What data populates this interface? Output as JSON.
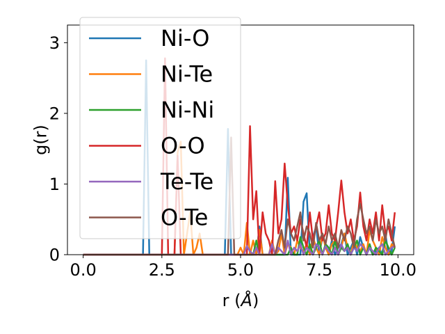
{
  "chart_data": {
    "type": "line",
    "title": "",
    "xlabel": "r (",
    "xlabel_symbol": "Å",
    "xlabel_close": ")",
    "ylabel": "g(r)",
    "xlim": [
      -0.5,
      10.5
    ],
    "ylim": [
      0,
      3.25
    ],
    "xticks": [
      0.0,
      2.5,
      5.0,
      7.5,
      10.0
    ],
    "xtick_labels": [
      "0.0",
      "2.5",
      "5.0",
      "7.5",
      "10.0"
    ],
    "yticks": [
      0,
      1,
      2,
      3
    ],
    "ytick_labels": [
      "0",
      "1",
      "2",
      "3"
    ],
    "grid": false,
    "legend_position": "top-left",
    "x": [
      0.0,
      0.1,
      0.2,
      0.3,
      0.4,
      0.5,
      0.6,
      0.7,
      0.8,
      0.9,
      1.0,
      1.1,
      1.2,
      1.3,
      1.4,
      1.5,
      1.6,
      1.7,
      1.8,
      1.9,
      2.0,
      2.1,
      2.2,
      2.3,
      2.4,
      2.5,
      2.6,
      2.7,
      2.8,
      2.9,
      3.0,
      3.1,
      3.2,
      3.3,
      3.4,
      3.5,
      3.6,
      3.7,
      3.8,
      3.9,
      4.0,
      4.1,
      4.2,
      4.3,
      4.4,
      4.5,
      4.6,
      4.7,
      4.8,
      4.9,
      5.0,
      5.1,
      5.2,
      5.3,
      5.4,
      5.5,
      5.6,
      5.7,
      5.8,
      5.9,
      6.0,
      6.1,
      6.2,
      6.3,
      6.4,
      6.5,
      6.6,
      6.7,
      6.8,
      6.9,
      7.0,
      7.1,
      7.2,
      7.3,
      7.4,
      7.5,
      7.6,
      7.7,
      7.8,
      7.9,
      8.0,
      8.1,
      8.2,
      8.3,
      8.4,
      8.5,
      8.6,
      8.7,
      8.8,
      8.9,
      9.0,
      9.1,
      9.2,
      9.3,
      9.4,
      9.5,
      9.6,
      9.7,
      9.8,
      9.9
    ],
    "series": [
      {
        "name": "Ni-O",
        "color": "#1f77b4",
        "values": [
          0,
          0,
          0,
          0,
          0,
          0,
          0,
          0,
          0,
          0,
          0,
          0,
          0,
          0,
          0,
          0,
          0,
          0,
          0,
          0,
          2.75,
          0,
          0,
          0,
          0,
          0,
          0,
          0,
          0,
          0,
          0,
          0,
          0,
          0,
          0,
          0,
          0,
          0,
          0,
          0,
          0,
          0,
          0,
          0,
          0,
          0,
          1.78,
          0,
          0,
          0,
          0,
          0,
          0,
          0,
          0,
          0,
          0.4,
          0,
          0,
          0,
          0,
          0,
          0,
          0,
          0,
          1.09,
          0,
          0,
          0,
          0,
          0.75,
          0.87,
          0,
          0.25,
          0.4,
          0,
          0.25,
          0.15,
          0,
          0.2,
          0,
          0.1,
          0.15,
          0.3,
          0,
          0.1,
          0.2,
          0,
          0.25,
          0.1,
          0,
          0.1,
          0,
          0.05,
          0.1,
          0,
          0.3,
          0,
          0.05,
          0.4
        ]
      },
      {
        "name": "Ni-Te",
        "color": "#ff7f0e",
        "values": [
          0,
          0,
          0,
          0,
          0,
          0,
          0,
          0,
          0,
          0,
          0,
          0,
          0,
          0,
          0,
          0,
          0,
          0,
          0,
          0,
          0,
          0,
          0,
          0,
          0,
          0,
          0,
          0,
          0,
          0,
          1.45,
          1.6,
          0,
          0.3,
          0.6,
          0,
          0.1,
          0.3,
          0,
          0,
          0,
          0,
          0,
          0,
          0,
          0,
          0,
          0,
          0,
          0,
          0.1,
          0,
          0.45,
          0,
          0.2,
          0,
          0.35,
          0,
          0,
          0,
          0.2,
          0,
          0.05,
          0.3,
          0,
          0.15,
          0.1,
          0,
          0.2,
          0.1,
          0.05,
          0.15,
          0,
          0.25,
          0.1,
          0,
          0.3,
          0.1,
          0,
          0.15,
          0.2,
          0,
          0.1,
          0.3,
          0.1,
          0,
          0.2,
          0.1,
          0.05,
          0.15,
          0,
          0.35,
          0.2,
          0.1,
          0,
          0.25,
          0.1,
          0,
          0.15,
          0.1
        ]
      },
      {
        "name": "Ni-Ni",
        "color": "#2ca02c",
        "values": [
          0,
          0,
          0,
          0,
          0,
          0,
          0,
          0,
          0,
          0,
          0,
          0,
          0,
          0,
          0,
          0,
          0,
          0,
          0,
          0,
          0,
          0,
          0,
          0,
          0,
          0,
          0,
          0,
          0,
          0,
          0,
          0,
          0,
          0,
          0,
          0,
          0,
          0,
          0,
          0,
          0,
          0,
          0,
          0,
          0,
          0,
          0,
          0,
          0,
          0,
          0,
          0,
          0,
          0,
          0,
          0.2,
          0,
          0,
          0,
          0,
          0,
          0,
          0,
          0,
          0,
          0,
          0.1,
          0,
          0,
          0.25,
          0.1,
          0,
          0.15,
          0,
          0.1,
          0.2,
          0,
          0.15,
          0.1,
          0,
          0.2,
          0,
          0.1,
          0.05,
          0.15,
          0,
          0.1,
          0.2,
          0,
          0.1,
          0,
          0.15,
          0,
          0.1,
          0.05,
          0,
          0.2,
          0.1,
          0,
          0.1
        ]
      },
      {
        "name": "O-O",
        "color": "#d62728",
        "values": [
          0,
          0,
          0,
          0,
          0,
          0,
          0,
          0,
          0,
          0,
          0,
          0,
          0,
          0,
          0,
          0,
          0,
          0,
          0,
          0,
          0,
          0,
          0,
          0,
          0,
          0,
          2.78,
          0,
          0,
          0,
          1.4,
          0,
          0,
          0,
          0,
          0,
          0,
          0,
          0,
          0,
          0,
          0,
          0,
          0,
          0,
          0,
          0,
          0,
          0,
          0,
          0,
          0,
          0,
          1.82,
          0.5,
          0.9,
          0,
          0.6,
          0.3,
          0.2,
          0,
          1.04,
          0.3,
          0.5,
          1.29,
          0.7,
          0.3,
          0.4,
          0.2,
          0.5,
          0.3,
          0.1,
          0.6,
          0.2,
          0.4,
          0.6,
          0.2,
          0.3,
          0.7,
          0.3,
          0.2,
          0.6,
          1.05,
          0.6,
          0.3,
          0.5,
          0.2,
          0.4,
          0.88,
          0.4,
          0.2,
          0.5,
          0.3,
          0.6,
          0.2,
          0.7,
          0.3,
          0.4,
          0.2,
          0.6
        ]
      },
      {
        "name": "Te-Te",
        "color": "#9467bd",
        "values": [
          0,
          0,
          0,
          0,
          0,
          0,
          0,
          0,
          0,
          0,
          0,
          0,
          0,
          0,
          0,
          0,
          0,
          0,
          0,
          0,
          0,
          0,
          0,
          0,
          0,
          0,
          0,
          0,
          0,
          0,
          0,
          0,
          0,
          0,
          0,
          0,
          0,
          0,
          0,
          0,
          0,
          0,
          0,
          0,
          0,
          0,
          0,
          0,
          0,
          0,
          0,
          0,
          0.12,
          0.05,
          0,
          0.1,
          0,
          0,
          0,
          0,
          0.15,
          0,
          0.1,
          0.05,
          0,
          0.2,
          0,
          0.1,
          0.05,
          0.15,
          0,
          0.1,
          0.05,
          0,
          0.15,
          0.1,
          0,
          0.12,
          0.05,
          0,
          0.1,
          0,
          0.15,
          0.05,
          0.1,
          0,
          0.1,
          0.05,
          0.15,
          0.1,
          0,
          0.1,
          0.05,
          0,
          0.1,
          0.15,
          0,
          0.05,
          0.1,
          0.12
        ]
      },
      {
        "name": "O-Te",
        "color": "#8c564b",
        "values": [
          0,
          0,
          0,
          0,
          0,
          0,
          0,
          0,
          0,
          0,
          0,
          0,
          0,
          0,
          0,
          0,
          0,
          0,
          0,
          0,
          0,
          0,
          0,
          0,
          0,
          0,
          0,
          0,
          0,
          0,
          0,
          0,
          0,
          0,
          0,
          0,
          0,
          0,
          0,
          0,
          0,
          0,
          0,
          0,
          0,
          0,
          0,
          1.66,
          0,
          0,
          0,
          0,
          0,
          0,
          0,
          0,
          0,
          0,
          0,
          0,
          0,
          0,
          0.2,
          0.35,
          0.1,
          0.5,
          0.3,
          0.2,
          0.4,
          0.6,
          0.2,
          0.4,
          0.3,
          0.1,
          0.45,
          0.2,
          0.3,
          0.15,
          0.4,
          0.2,
          0.3,
          0.1,
          0.35,
          0.2,
          0.4,
          0.3,
          0.1,
          0.5,
          0.72,
          0.5,
          0.3,
          0.4,
          0.2,
          0.5,
          0.3,
          0.4,
          0.2,
          0.5,
          0.3,
          0.1
        ]
      }
    ]
  }
}
